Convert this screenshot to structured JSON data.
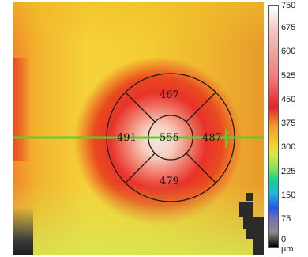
{
  "sector_values": {
    "superior": "467",
    "nasal_left": "491",
    "center": "555",
    "temporal_right": "487",
    "inferior": "479"
  },
  "colorbar": {
    "ticks": [
      "750",
      "675",
      "600",
      "525",
      "450",
      "375",
      "300",
      "225",
      "150",
      "75",
      "0"
    ],
    "unit": "μm"
  },
  "colors": {
    "scan_line": "#59d02a",
    "ring": "#1a1a1a"
  }
}
